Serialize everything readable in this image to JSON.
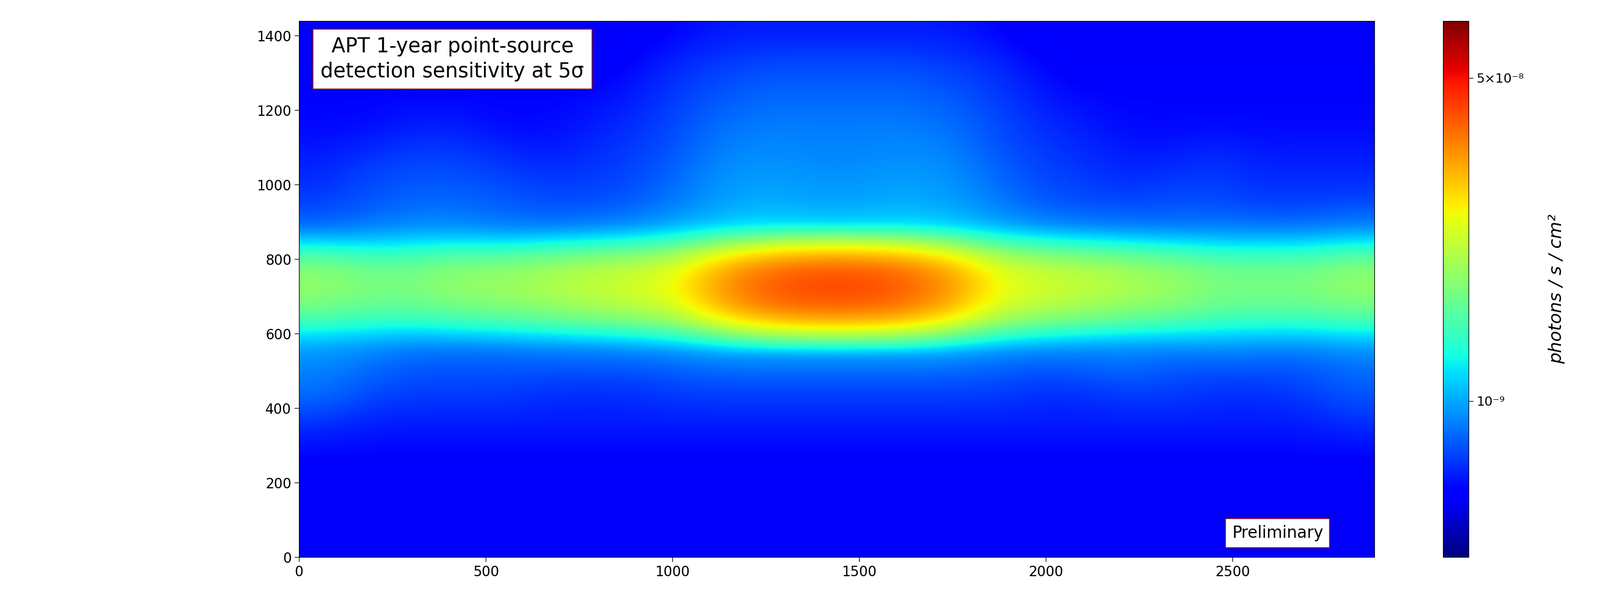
{
  "chart_data": {
    "type": "heatmap",
    "annotations": [
      "APT 1-year point-source\ndetection sensitivity at 5σ",
      "Preliminary"
    ],
    "xlim": [
      0,
      2880
    ],
    "ylim": [
      0,
      1440
    ],
    "xticks": [
      0,
      500,
      1000,
      1500,
      2000,
      2500
    ],
    "yticks": [
      0,
      200,
      400,
      600,
      800,
      1000,
      1200,
      1400
    ],
    "colorbar_label": "photons / s / cm²",
    "colorbar_range": [
      1.5e-10,
      1e-07
    ],
    "colorbar_ticks": [
      {
        "value": 1e-09,
        "label": "10⁻⁹"
      },
      {
        "value": 5e-08,
        "label": "5×10⁻⁸"
      }
    ],
    "cells": [
      [
        3e-10,
        3e-10,
        3e-10,
        3e-10,
        3e-10,
        3e-10,
        3e-10,
        3e-10,
        3.5e-10,
        4e-10,
        4e-10,
        4e-10,
        4e-10,
        4e-10,
        4e-10,
        3.5e-10,
        3e-10,
        3e-10,
        3e-10,
        3e-10,
        3e-10,
        3e-10,
        3e-10,
        3e-10
      ],
      [
        3e-10,
        3e-10,
        3e-10,
        3e-10,
        3e-10,
        3e-10,
        3e-10,
        3.5e-10,
        4.5e-10,
        5e-10,
        5.5e-10,
        5.5e-10,
        5.5e-10,
        5.5e-10,
        5e-10,
        4.5e-10,
        3.5e-10,
        3e-10,
        3e-10,
        3e-10,
        3e-10,
        3e-10,
        3e-10,
        3e-10
      ],
      [
        3.5e-10,
        3.5e-10,
        3.5e-10,
        3.5e-10,
        3.5e-10,
        3.5e-10,
        3.5e-10,
        4e-10,
        5e-10,
        6e-10,
        6.5e-10,
        6.5e-10,
        6.5e-10,
        6.5e-10,
        6e-10,
        5e-10,
        4e-10,
        3.5e-10,
        3.5e-10,
        3.5e-10,
        3.5e-10,
        3.5e-10,
        3.5e-10,
        3.5e-10
      ],
      [
        3.5e-10,
        3.5e-10,
        4e-10,
        4e-10,
        3.5e-10,
        3.5e-10,
        4e-10,
        4.5e-10,
        5.5e-10,
        7e-10,
        7.5e-10,
        7.5e-10,
        7.5e-10,
        7.5e-10,
        7e-10,
        5.5e-10,
        4.5e-10,
        4e-10,
        3.5e-10,
        3.5e-10,
        3.5e-10,
        3.5e-10,
        3.5e-10,
        3.5e-10
      ],
      [
        4e-10,
        4.5e-10,
        5e-10,
        5e-10,
        4.5e-10,
        4e-10,
        4.5e-10,
        5e-10,
        6e-10,
        8e-10,
        8.5e-10,
        8e-10,
        8e-10,
        8.5e-10,
        8e-10,
        6e-10,
        5e-10,
        4.5e-10,
        4e-10,
        4e-10,
        4.5e-10,
        4e-10,
        4e-10,
        4e-10
      ],
      [
        4.5e-10,
        5.5e-10,
        6e-10,
        6e-10,
        5.5e-10,
        5e-10,
        5e-10,
        5.5e-10,
        7e-10,
        9e-10,
        9.5e-10,
        9e-10,
        9e-10,
        9.5e-10,
        9e-10,
        7e-10,
        5.5e-10,
        5e-10,
        4.5e-10,
        5e-10,
        5e-10,
        4.5e-10,
        4.5e-10,
        4.5e-10
      ],
      [
        5.5e-10,
        6e-10,
        7e-10,
        7e-10,
        6.5e-10,
        6e-10,
        6e-10,
        6.5e-10,
        8e-10,
        1e-09,
        1.1e-09,
        1e-09,
        1e-09,
        1.1e-09,
        1e-09,
        8e-10,
        6.5e-10,
        6e-10,
        6e-10,
        6e-10,
        6e-10,
        5.5e-10,
        5.5e-10,
        6e-10
      ],
      [
        9e-10,
        1e-09,
        1.1e-09,
        1.1e-09,
        1e-09,
        1e-09,
        1.1e-09,
        1.2e-09,
        1.5e-09,
        1.8e-09,
        2e-09,
        2e-09,
        2e-09,
        2e-09,
        1.8e-09,
        1.5e-09,
        1.2e-09,
        1.1e-09,
        1e-09,
        1e-09,
        1e-09,
        1e-09,
        1e-09,
        1.1e-09
      ],
      [
        5e-09,
        4e-09,
        4e-09,
        5e-09,
        5e-09,
        6e-09,
        7e-09,
        8e-09,
        1e-08,
        2e-08,
        3e-08,
        3.5e-08,
        3.5e-08,
        3e-08,
        2e-08,
        1e-08,
        8e-09,
        7e-09,
        6e-09,
        5e-09,
        4e-09,
        4e-09,
        4e-09,
        5e-09
      ],
      [
        4e-09,
        3.5e-09,
        3.5e-09,
        4e-09,
        4.5e-09,
        5e-09,
        6e-09,
        7e-09,
        9e-09,
        1.8e-08,
        2.8e-08,
        3.2e-08,
        3.2e-08,
        2.8e-08,
        1.8e-08,
        9e-09,
        7e-09,
        6e-09,
        5e-09,
        4.5e-09,
        3.5e-09,
        3.5e-09,
        3.5e-09,
        4e-09
      ],
      [
        1.1e-09,
        1e-09,
        9e-10,
        9e-10,
        9e-10,
        1e-09,
        1e-09,
        1.1e-09,
        1.2e-09,
        1.4e-09,
        1.5e-09,
        1.5e-09,
        1.5e-09,
        1.5e-09,
        1.4e-09,
        1.2e-09,
        1.1e-09,
        1e-09,
        1e-09,
        1e-09,
        1.1e-09,
        1e-09,
        1e-09,
        1.1e-09
      ],
      [
        8e-10,
        7e-10,
        6e-10,
        6e-10,
        6e-10,
        6e-10,
        6e-10,
        6e-10,
        6.5e-10,
        7e-10,
        7e-10,
        7e-10,
        7e-10,
        7e-10,
        7e-10,
        6.5e-10,
        6e-10,
        6.5e-10,
        7e-10,
        6e-10,
        6e-10,
        6e-10,
        6e-10,
        7e-10
      ],
      [
        7e-10,
        5.5e-10,
        5e-10,
        5e-10,
        5e-10,
        4.5e-10,
        4.5e-10,
        4.5e-10,
        5e-10,
        5e-10,
        5e-10,
        5e-10,
        5e-10,
        5e-10,
        5e-10,
        5e-10,
        4.5e-10,
        4.5e-10,
        5e-10,
        5e-10,
        4.5e-10,
        4.5e-10,
        5e-10,
        6e-10
      ],
      [
        4.5e-10,
        4e-10,
        4e-10,
        4e-10,
        4e-10,
        4e-10,
        4e-10,
        4e-10,
        4e-10,
        4e-10,
        4e-10,
        4e-10,
        4e-10,
        4e-10,
        4e-10,
        4e-10,
        4e-10,
        4e-10,
        4e-10,
        4e-10,
        4e-10,
        4e-10,
        4e-10,
        4.5e-10
      ],
      [
        3.5e-10,
        3.5e-10,
        3.5e-10,
        3.5e-10,
        3.5e-10,
        3.5e-10,
        3.5e-10,
        3.5e-10,
        3.5e-10,
        3.5e-10,
        3.5e-10,
        3.5e-10,
        3.5e-10,
        3.5e-10,
        3.5e-10,
        3.5e-10,
        3.5e-10,
        3.5e-10,
        3.5e-10,
        3.5e-10,
        3.5e-10,
        3.5e-10,
        3.5e-10,
        3.5e-10
      ],
      [
        3e-10,
        3e-10,
        3e-10,
        3e-10,
        3e-10,
        3e-10,
        3e-10,
        3e-10,
        3e-10,
        3e-10,
        3e-10,
        3e-10,
        3e-10,
        3e-10,
        3e-10,
        3e-10,
        3e-10,
        3e-10,
        3e-10,
        3e-10,
        3e-10,
        3e-10,
        3e-10,
        3e-10
      ],
      [
        3e-10,
        3e-10,
        3e-10,
        3e-10,
        3e-10,
        3e-10,
        3e-10,
        3e-10,
        3e-10,
        3e-10,
        3e-10,
        3e-10,
        3e-10,
        3e-10,
        3e-10,
        3e-10,
        3e-10,
        3e-10,
        3e-10,
        3e-10,
        3e-10,
        3e-10,
        3e-10,
        3e-10
      ],
      [
        3e-10,
        3e-10,
        3e-10,
        3e-10,
        3e-10,
        3e-10,
        3e-10,
        3e-10,
        3e-10,
        3e-10,
        3e-10,
        3e-10,
        3e-10,
        3e-10,
        3e-10,
        3e-10,
        3e-10,
        3e-10,
        3e-10,
        3e-10,
        3e-10,
        3e-10,
        3e-10,
        3e-10
      ]
    ]
  }
}
